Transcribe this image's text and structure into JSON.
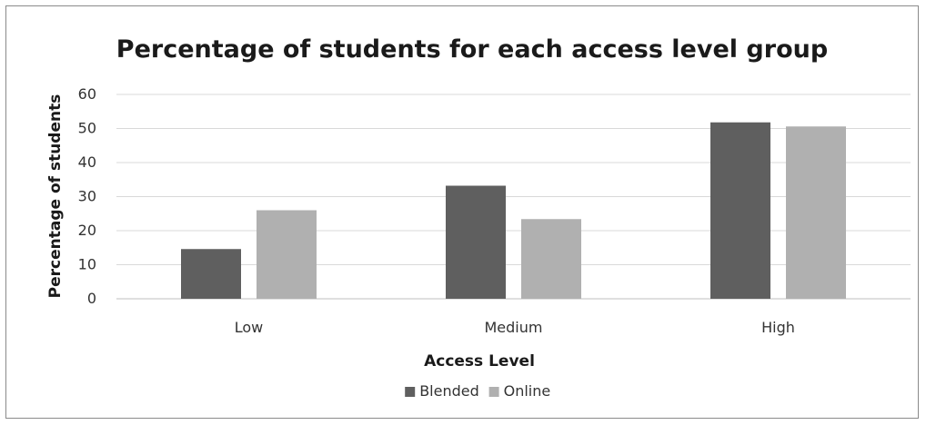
{
  "chart_data": {
    "type": "bar",
    "title": "Percentage of students for each access level group",
    "xlabel": "Access Level",
    "ylabel": "Percentage of students",
    "categories": [
      "Low",
      "Medium",
      "High"
    ],
    "series": [
      {
        "name": "Blended",
        "values": [
          14.6,
          33.2,
          51.8
        ],
        "color": "#5f5f5f"
      },
      {
        "name": "Online",
        "values": [
          26.0,
          23.4,
          50.6
        ],
        "color": "#b0b0b0"
      }
    ],
    "ylim": [
      0,
      60
    ],
    "yticks": [
      0,
      10,
      20,
      30,
      40,
      50,
      60
    ],
    "grid": true,
    "legend_position": "bottom",
    "gridline_color": "#d9d9d9"
  }
}
